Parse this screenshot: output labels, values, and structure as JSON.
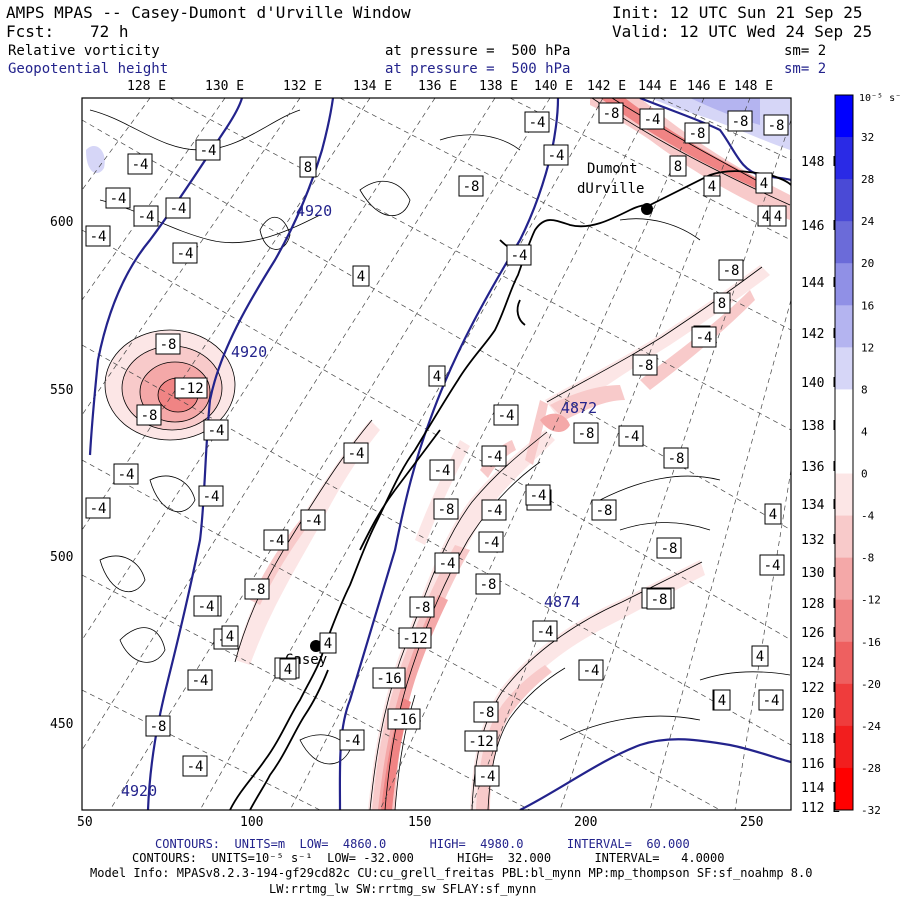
{
  "header": {
    "title": "AMPS MPAS -- Casey-Dumont d'Urville Window",
    "fcst_label": "Fcst:",
    "fcst_value": "72 h",
    "init": "Init: 12 UTC Sun 21 Sep 25",
    "valid": "Valid: 12 UTC Wed 24 Sep 25",
    "field1": {
      "name": "Relative vorticity",
      "pressure": "at pressure =  500 hPa",
      "sm": "sm= 2"
    },
    "field2": {
      "name": "Geopotential height",
      "pressure": "at pressure =  500 hPa",
      "sm": "sm= 2"
    }
  },
  "axes": {
    "top_lon_labels": [
      "128 E",
      "130 E",
      "132 E",
      "134 E",
      "136 E",
      "138 E",
      "140 E",
      "142 E",
      "144 E",
      "146 E",
      "148 E"
    ],
    "right_lon_labels": [
      "148 E",
      "146 E",
      "144 E",
      "142 E",
      "140 E",
      "138 E",
      "136 E",
      "134 E",
      "132 E",
      "130 E",
      "128 E",
      "126 E",
      "124 E",
      "122 E",
      "120 E",
      "118 E",
      "116 E",
      "114 E",
      "112 E"
    ],
    "x_ticks": [
      "50",
      "100",
      "150",
      "200",
      "250"
    ],
    "y_ticks": [
      "600",
      "550",
      "500",
      "450"
    ]
  },
  "map": {
    "stations": [
      "Dumont",
      "dUrville",
      "Casey"
    ],
    "height_labels": [
      "4920",
      "4920",
      "4920",
      "4872",
      "4874"
    ],
    "vort_labels": [
      "-4",
      "-4",
      "8",
      "-4",
      "-4",
      "-4",
      "-4",
      "-4",
      "-8",
      "-12",
      "-8",
      "-4",
      "-4",
      "-4",
      "-4",
      "-4",
      "-4",
      "-4",
      "-8",
      "-8",
      "-4",
      "-4",
      "-8",
      "-4",
      "-4",
      "-4",
      "-4",
      "-4",
      "-4",
      "-4",
      "-4",
      "4",
      "4",
      "4",
      "-4",
      "-4",
      "-8",
      "-4",
      "-8",
      "-8",
      "-12",
      "-16",
      "-16",
      "-12",
      "-8",
      "-4",
      "-8",
      "-8",
      "-12",
      "-8",
      "-4",
      "-8",
      "-8",
      "-8",
      "-8",
      "4",
      "8",
      "8",
      "4",
      "4",
      "-4",
      "-8",
      "-4",
      "-8",
      "-8",
      "-8",
      "-8",
      "-4",
      "-4",
      "4",
      "4",
      "4",
      "-4",
      "-4",
      "-4",
      "-8",
      "-4",
      "4",
      "4",
      "-4",
      "4",
      "4",
      "4"
    ]
  },
  "colorbar": {
    "unit": "10⁻⁵ s⁻¹",
    "labels": [
      "32",
      "28",
      "24",
      "20",
      "16",
      "12",
      "8",
      "4",
      "0",
      "-4",
      "-8",
      "-12",
      "-16",
      "-20",
      "-24",
      "-28",
      "-32"
    ],
    "colors": [
      "#0000ff",
      "#2a2ae6",
      "#4a4ad6",
      "#6b6bd9",
      "#9090e6",
      "#b4b4f0",
      "#d6d6f7",
      "#ffffff",
      "#ffffff",
      "#fce6e6",
      "#f8caca",
      "#f4a8a8",
      "#f08484",
      "#ee6060",
      "#ef3c3c",
      "#f21e1e",
      "#ff0000"
    ]
  },
  "footer": {
    "line1": {
      "prefix": "CONTOURS:",
      "units": "UNITS=m",
      "low": "LOW=  4860.0",
      "high": "HIGH=  4980.0",
      "interval": "INTERVAL=  60.000"
    },
    "line2": {
      "prefix": "CONTOURS:",
      "units": "UNITS=10⁻⁵ s⁻¹",
      "low": "LOW= -32.000",
      "high": "HIGH=  32.000",
      "interval": "INTERVAL=   4.0000"
    },
    "model_info": "Model Info: MPASv8.2.3-194-gf29cd82c CU:cu_grell_freitas PBL:bl_mynn MP:mp_thompson SF:sf_noahmp 8.0",
    "model_info2": "LW:rrtmg_lw SW:rrtmg_sw SFLAY:sf_mynn"
  }
}
